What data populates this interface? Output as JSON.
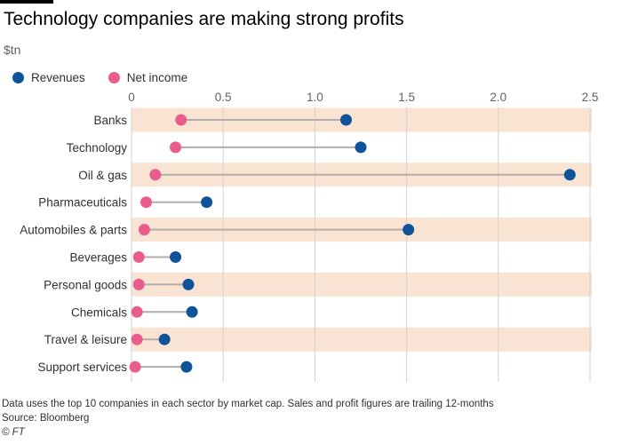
{
  "header": {
    "title": "Technology companies are making strong profits",
    "unit": "$tn"
  },
  "colors": {
    "revenues": "#0f5499",
    "net_income": "#e95d8c",
    "band": "#f9e4d3",
    "connector": "#b3aca8",
    "gridline": "#d9cfc8"
  },
  "chart_data": {
    "type": "scatter",
    "subtype": "dumbbell",
    "title": "Technology companies are making strong profits",
    "xlabel": "",
    "ylabel": "",
    "unit": "$tn",
    "xlim": [
      0,
      2.5
    ],
    "xticks": [
      0,
      0.5,
      1.0,
      1.5,
      2.0,
      2.5
    ],
    "xtick_labels": [
      "0",
      "0.5",
      "1.0",
      "1.5",
      "2.0",
      "2.5"
    ],
    "grid": true,
    "legend_position": "top-left",
    "categories": [
      "Banks",
      "Technology",
      "Oil & gas",
      "Pharmaceuticals",
      "Automobiles & parts",
      "Beverages",
      "Personal goods",
      "Chemicals",
      "Travel & leisure",
      "Support services"
    ],
    "series": [
      {
        "name": "Revenues",
        "values": [
          1.17,
          1.25,
          2.39,
          0.41,
          1.51,
          0.24,
          0.31,
          0.33,
          0.18,
          0.3
        ]
      },
      {
        "name": "Net income",
        "values": [
          0.27,
          0.24,
          0.13,
          0.08,
          0.07,
          0.04,
          0.04,
          0.03,
          0.03,
          0.02
        ]
      }
    ]
  },
  "footer": {
    "note": "Data uses the top 10 companies in each sector by market cap. Sales and profit figures are trailing 12-months",
    "source": "Source: Bloomberg",
    "copyright": "© FT"
  }
}
